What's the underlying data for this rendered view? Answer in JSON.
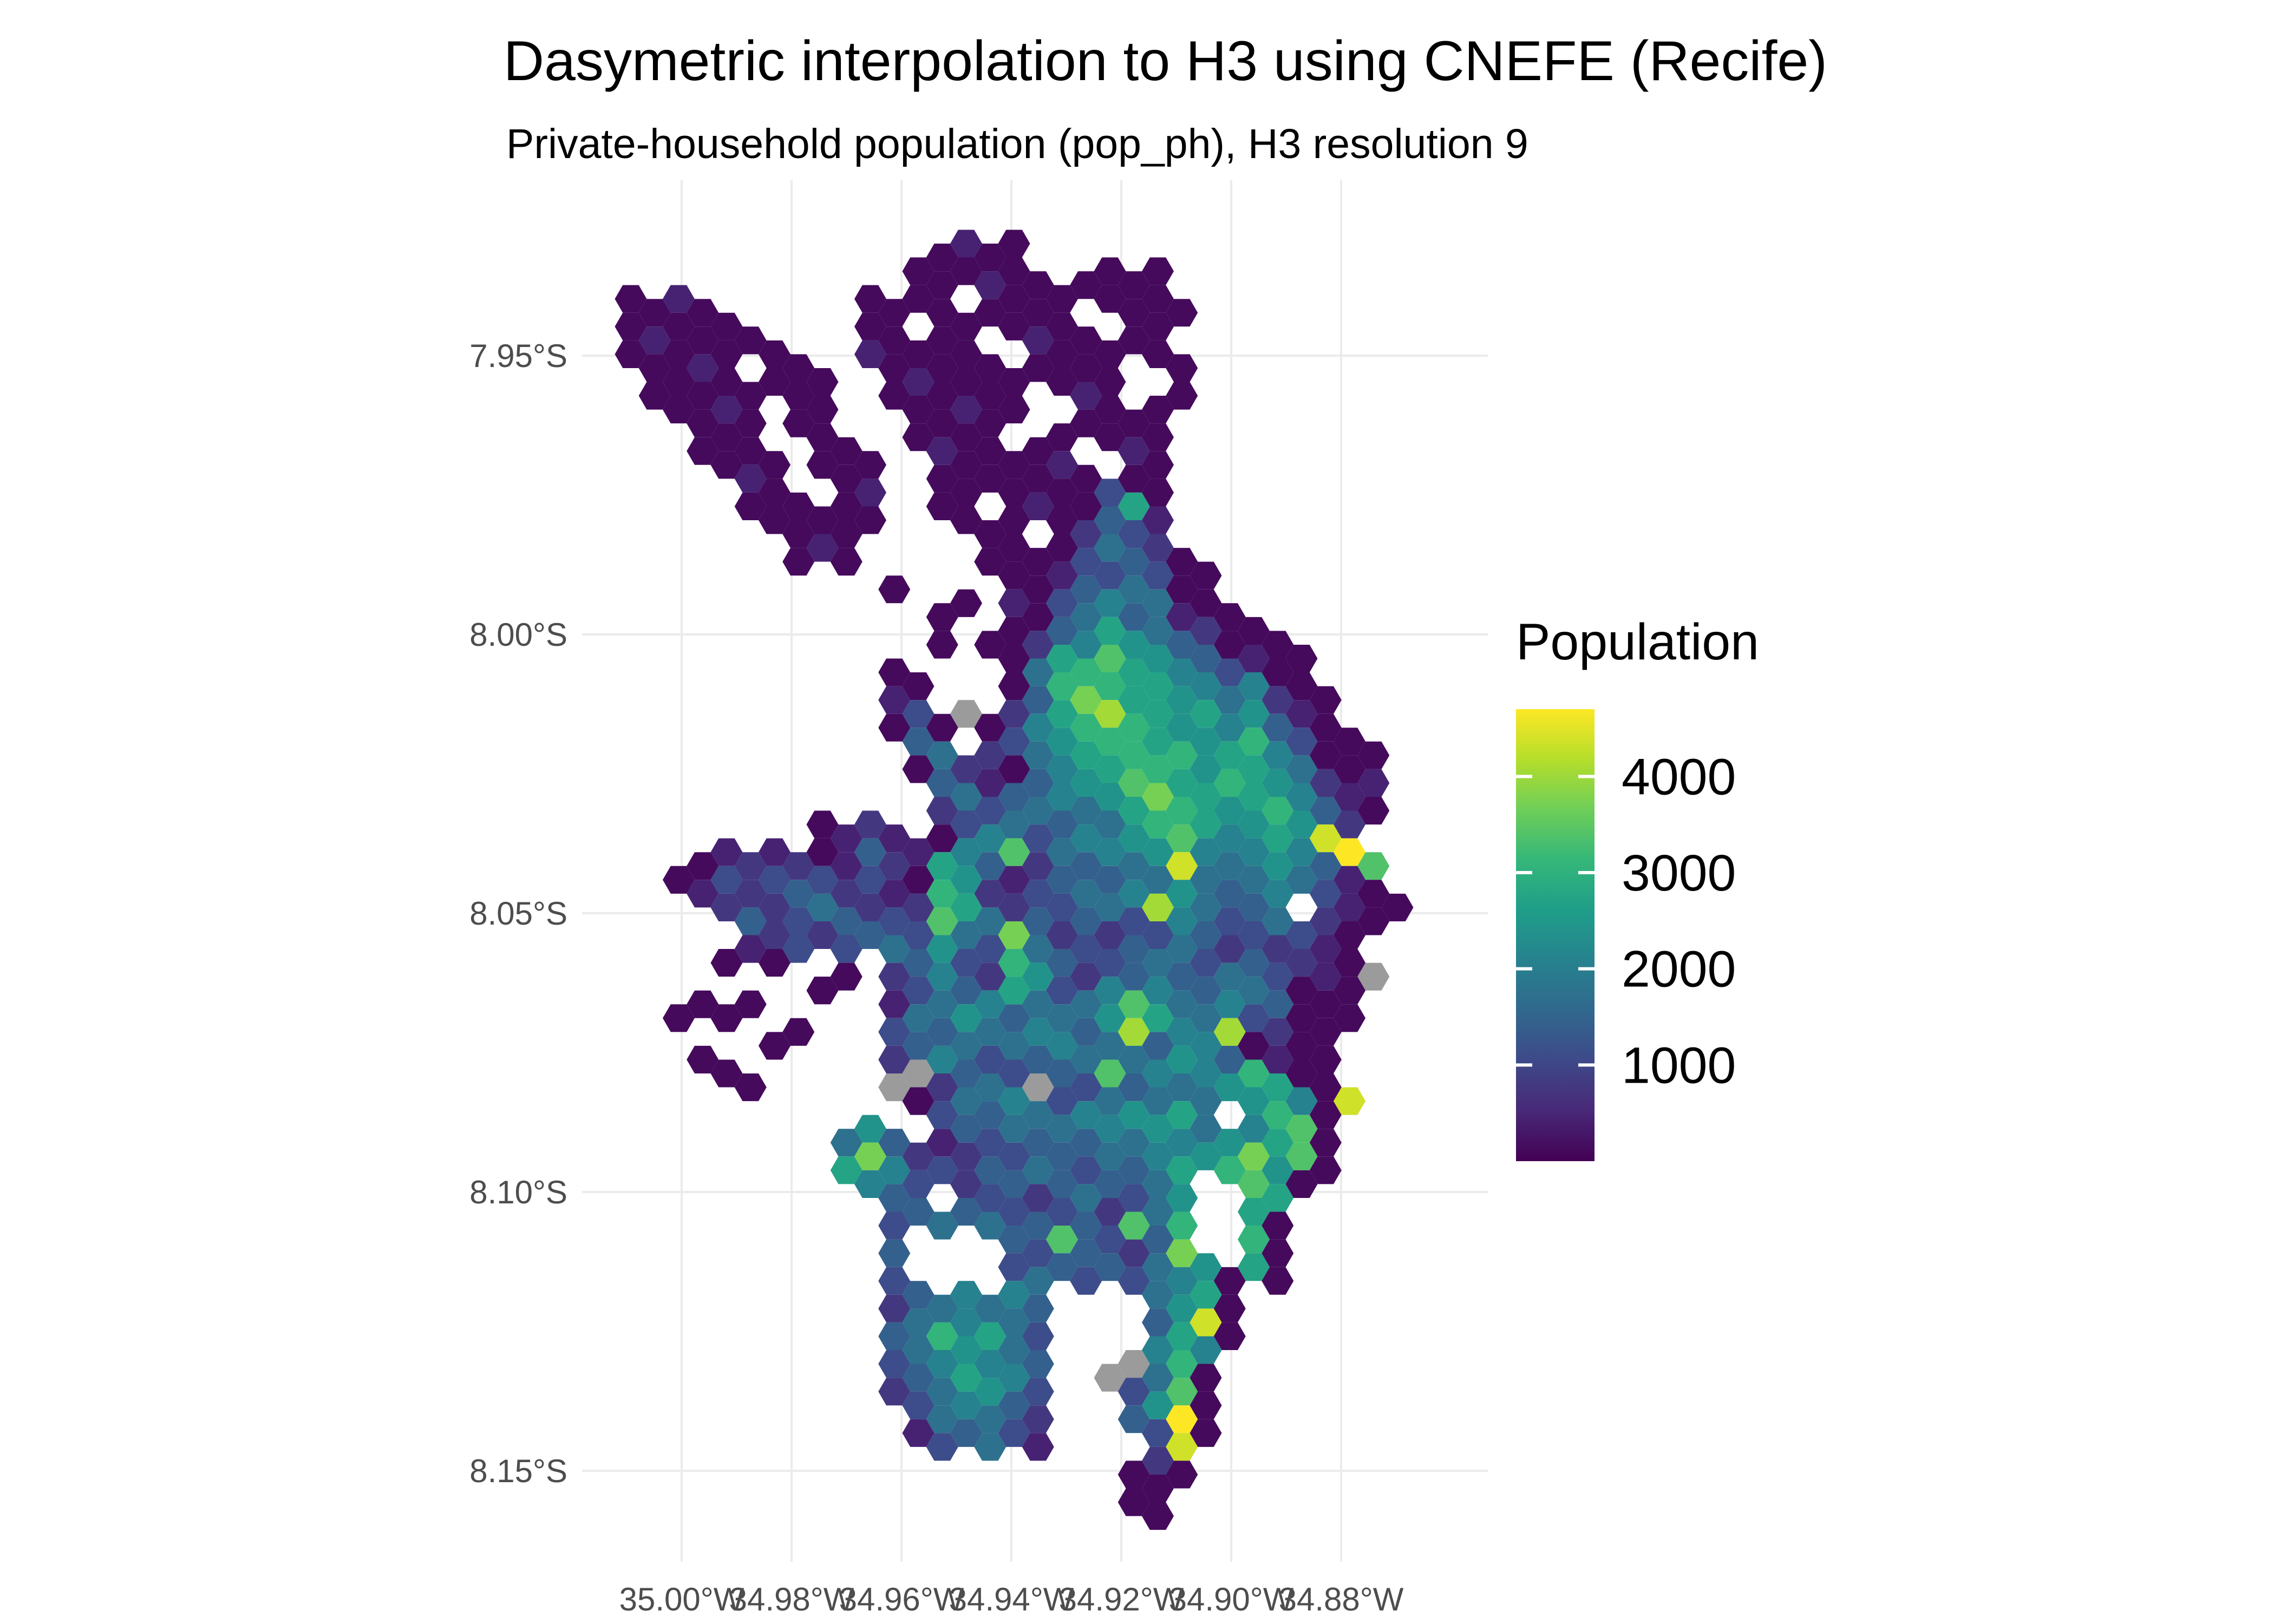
{
  "title": "Dasymetric interpolation to H3 using CNEFE (Recife)",
  "subtitle": "Private-household population (pop_ph), H3 resolution 9",
  "legend": {
    "title": "Population",
    "ticks": [
      4000,
      3000,
      2000,
      1000
    ],
    "domain": [
      0,
      4700
    ]
  },
  "axes": {
    "x_ticks": [
      {
        "label": "35.00°W",
        "lon": -35.0
      },
      {
        "label": "34.98°W",
        "lon": -34.98
      },
      {
        "label": "34.96°W",
        "lon": -34.96
      },
      {
        "label": "34.94°W",
        "lon": -34.94
      },
      {
        "label": "34.92°W",
        "lon": -34.92
      },
      {
        "label": "34.90°W",
        "lon": -34.9
      },
      {
        "label": "34.88°W",
        "lon": -34.88
      }
    ],
    "y_ticks": [
      {
        "label": "7.95°S",
        "lat": -7.95
      },
      {
        "label": "8.00°S",
        "lat": -8.0
      },
      {
        "label": "8.05°S",
        "lat": -8.05
      },
      {
        "label": "8.10°S",
        "lat": -8.1
      },
      {
        "label": "8.15°S",
        "lat": -8.15
      }
    ]
  },
  "colors": {
    "background": "#ffffff",
    "gridline": "#ebebeb",
    "axis_text": "#4d4d4d",
    "text": "#000000",
    "na": "#9b9b9b"
  },
  "chart_data": {
    "type": "heatmap",
    "subtype": "h3-hexagon-choropleth-map",
    "title": "Dasymetric interpolation to H3 using CNEFE (Recife)",
    "variable": "pop_ph (private-household population)",
    "region": "Recife, Brazil",
    "h3_resolution": 9,
    "palette": "viridis",
    "palette_stops": [
      [
        0.0,
        "#440154"
      ],
      [
        0.111,
        "#482878"
      ],
      [
        0.222,
        "#3e4989"
      ],
      [
        0.333,
        "#31688e"
      ],
      [
        0.444,
        "#26828e"
      ],
      [
        0.556,
        "#1f9e89"
      ],
      [
        0.667,
        "#35b779"
      ],
      [
        0.778,
        "#6ece58"
      ],
      [
        0.889,
        "#b5de2b"
      ],
      [
        1.0,
        "#fde725"
      ]
    ],
    "na_color": "#9b9b9b",
    "value_domain": [
      0,
      4700
    ],
    "legend_ticks": [
      1000,
      2000,
      3000,
      4000
    ],
    "lon_range_deg": [
      -35.012,
      -34.868
    ],
    "lat_range_deg": [
      -7.931,
      -8.159
    ],
    "grid": {
      "cols": 33,
      "rows": 48,
      "encoding": "one char per column: '.'=no hexagon, hex digit 0-9/a-e = population level index (see level_values), 'x' = NA (gray)",
      "level_values": [
        120,
        447,
        774,
        1101,
        1428,
        1755,
        2082,
        2409,
        2736,
        3063,
        3390,
        3717,
        4044,
        4371,
        4698
      ],
      "rows_data": [
        ".............0100................",
        "............000100.0000..........",
        "0010......0000.0000.0000.........",
        "010000....00.00.0100.00..........",
        "00010.00..100000.0000.00.........",
        ".00000000..010000.010..0.........",
        "..0010.00...00100..0000..........",
        "...000..00..0100.00.010..........",
        "....010.000..0000010.00..........",
        ".....000.01..00.0100380..........",
        "......00000...000.02431..........",
        ".......010.....000035420.........",
        "...........0....001435300........",
        ".............00.1035645100.......",
        ".............0.0024687542000.....",
        "...........0....0589a87643100....",
        "...........10...049b9887656200...",
        "...........030x02689c987867410...",
        "............45.23578998978963000.",
        "............042104678a9879875201.",
        ".............253456578b987896410.",
        "........0121.0365346579a86787d2..",
        "...0121201421864a254657d656764ea.",
        "..013234323109721345465754565310.",
        "....242354232a85243453c65345.2100",
        ".....12323453753b52324354232310..",
        "....0.0..0.24632974234543543210x.",
        "...0.0..0..1354685356a654654000..",
        "..0.0..0...3547546547c865c32000..",
        "...0..0....2465354655547640100...",
        "....00.....xx2453x43a465679800...",
        "............0354653657585.7960d..",
        ".........574.143545465765768a0...",
        ".........8b623243543546879b7a0...",
        "..........643.2342454357..a80....",
        "...........3454534342a59..80.....",
        "...........4....43a4324b..90.....",
        "...........3....354343567080.....",
        "...........2456564....5780.......",
        "...........4596853....48d0.......",
        "...........3567654...x696........",
        "...........2458763..x35a0........",
        "............356542...47e0........",
        "............134531....3d0........",
        ".....................020.........",
        ".....................00..........",
        "......................0..........",
        "................................."
      ]
    }
  }
}
